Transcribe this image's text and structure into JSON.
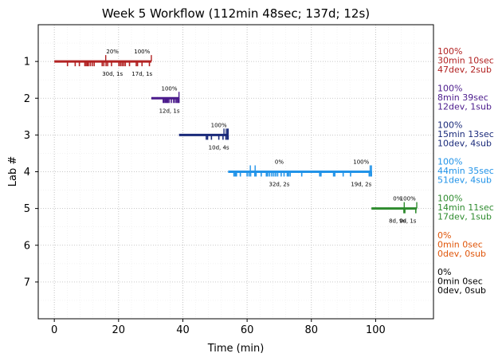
{
  "chart_data": {
    "type": "timeline",
    "title": "Week 5 Workflow (112min 48sec; 137d; 12s)",
    "xlabel": "Time (min)",
    "ylabel": "Lab #",
    "xlim": [
      -5,
      118
    ],
    "ylim": [
      8,
      0
    ],
    "xticks": [
      "0",
      "20",
      "40",
      "60",
      "80",
      "100"
    ],
    "yticks": [
      "1",
      "2",
      "3",
      "4",
      "5",
      "6",
      "7"
    ],
    "grid": true,
    "labs": [
      {
        "lab": 1,
        "color": "#b22222",
        "start": 0,
        "end": 30.2,
        "devs": [
          4.1,
          6.5,
          7.8,
          9.5,
          9.9,
          10.3,
          10.6,
          11.2,
          11.8,
          12.4,
          14.9,
          15.4,
          16.1,
          16.6,
          17.8,
          20.1,
          20.6,
          21.1,
          21.6,
          22.1,
          23.4,
          25.5,
          25.9,
          27.3,
          29.6
        ],
        "subs": [
          16.0,
          30.2
        ],
        "annotations": [
          {
            "x": 18.1,
            "pct": "20%",
            "dev": "30d, 1s"
          },
          {
            "x": 27.3,
            "pct": "100%",
            "dev": "17d, 1s"
          }
        ],
        "summary": [
          "100%",
          "30min 10sec",
          "47dev, 2sub"
        ]
      },
      {
        "lab": 2,
        "color": "#4b1b8c",
        "start": 30.2,
        "end": 38.8,
        "devs": [
          33.9,
          34.2,
          34.6,
          35.0,
          35.3,
          35.7,
          36.4,
          37.1,
          37.6,
          38.1,
          38.5,
          38.8
        ],
        "subs": [
          38.8
        ],
        "annotations": [
          {
            "x": 35.8,
            "pct": "100%",
            "dev": "12d, 1s"
          }
        ],
        "summary": [
          "100%",
          "8min 39sec",
          "12dev, 1sub"
        ]
      },
      {
        "lab": 3,
        "color": "#1a2a7a",
        "start": 38.8,
        "end": 54.1,
        "devs": [
          47.3,
          47.7,
          48.9,
          51.2,
          52.5,
          53.4,
          53.8,
          54.1
        ],
        "subs": [
          52.8,
          53.5,
          54.1,
          53.9
        ],
        "annotations": [
          {
            "x": 51.2,
            "pct": "100%",
            "dev": "10d, 4s"
          }
        ],
        "summary": [
          "100%",
          "15min 13sec",
          "10dev, 4sub"
        ]
      },
      {
        "lab": 4,
        "color": "#2193e8",
        "start": 54.1,
        "end": 98.7,
        "devs": [
          55.9,
          56.3,
          56.7,
          57.9,
          60.0,
          60.6,
          61.1,
          62.4,
          62.8,
          64.4,
          66.0,
          66.4,
          67.0,
          67.7,
          68.3,
          68.9,
          69.5,
          70.6,
          71.5,
          72.5,
          72.9,
          73.4,
          77.0,
          82.6,
          83.0,
          86.9,
          87.3,
          89.9,
          92.2,
          98.0,
          98.4,
          98.7
        ],
        "subs": [
          98.7,
          98.3,
          61.0,
          62.5
        ],
        "annotations": [
          {
            "x": 70.0,
            "pct": "0%",
            "dev": "32d, 2s"
          },
          {
            "x": 95.5,
            "pct": "100%",
            "dev": "19d, 2s"
          }
        ],
        "summary": [
          "100%",
          "44min 35sec",
          "51dev, 4sub"
        ]
      },
      {
        "lab": 5,
        "color": "#2e8b2e",
        "start": 98.7,
        "end": 112.8,
        "devs": [
          108.8,
          109.1,
          112.5
        ],
        "subs": [
          108.9,
          112.8
        ],
        "annotations": [
          {
            "x": 106.8,
            "pct": "0%",
            "dev": "8d, 0s"
          },
          {
            "x": 110.0,
            "pct": "100%",
            "dev": "9d, 1s"
          }
        ],
        "summary": [
          "100%",
          "14min 11sec",
          "17dev, 1sub"
        ]
      },
      {
        "lab": 6,
        "color": "#e0560a",
        "summary": [
          "0%",
          "0min 0sec",
          "0dev, 0sub"
        ]
      },
      {
        "lab": 7,
        "color": "#000000",
        "summary": [
          "0%",
          "0min 0sec",
          "0dev, 0sub"
        ]
      }
    ]
  }
}
